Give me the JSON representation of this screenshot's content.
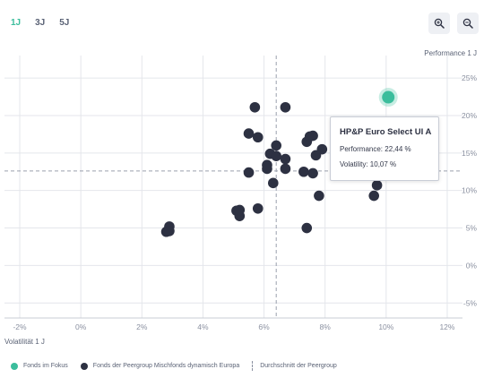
{
  "tabs": [
    {
      "label": "1J",
      "active": true
    },
    {
      "label": "3J",
      "active": false
    },
    {
      "label": "5J",
      "active": false
    }
  ],
  "zoom": {
    "in_icon": "zoom-in-icon",
    "out_icon": "zoom-out-icon"
  },
  "colors": {
    "focus": "#3bbd9c",
    "peer": "#2d3142",
    "grid": "#e4e6eb",
    "average_line": "#9aa0ad"
  },
  "chart_data": {
    "type": "scatter",
    "xlabel": "Volatilität 1 J",
    "ylabel": "Performance 1 J",
    "xlim": [
      -2.5,
      12.5
    ],
    "ylim": [
      -7,
      28
    ],
    "x_ticks": [
      "-2%",
      "0%",
      "2%",
      "4%",
      "6%",
      "8%",
      "10%",
      "12%"
    ],
    "x_tick_values": [
      -2,
      0,
      2,
      4,
      6,
      8,
      10,
      12
    ],
    "y_ticks": [
      "25%",
      "20%",
      "15%",
      "10%",
      "5%",
      "0%",
      "-5%"
    ],
    "y_tick_values": [
      25,
      20,
      15,
      10,
      5,
      0,
      -5
    ],
    "grid": true,
    "averages": {
      "x": 6.4,
      "y": 12.6
    },
    "series": [
      {
        "name": "Fonds im Fokus",
        "points": [
          {
            "x": 10.07,
            "y": 22.44
          }
        ]
      },
      {
        "name": "Fonds der Peergroup Mischfonds dynamisch Europa",
        "points": [
          {
            "x": 2.8,
            "y": 4.5
          },
          {
            "x": 2.9,
            "y": 5.2
          },
          {
            "x": 2.9,
            "y": 4.6
          },
          {
            "x": 5.1,
            "y": 7.3
          },
          {
            "x": 5.2,
            "y": 6.6
          },
          {
            "x": 5.2,
            "y": 7.4
          },
          {
            "x": 5.5,
            "y": 17.6
          },
          {
            "x": 5.5,
            "y": 12.4
          },
          {
            "x": 5.7,
            "y": 21.1
          },
          {
            "x": 5.8,
            "y": 17.1
          },
          {
            "x": 5.8,
            "y": 7.6
          },
          {
            "x": 6.1,
            "y": 13.4
          },
          {
            "x": 6.1,
            "y": 12.9
          },
          {
            "x": 6.2,
            "y": 14.9
          },
          {
            "x": 6.3,
            "y": 11.0
          },
          {
            "x": 6.4,
            "y": 16.0
          },
          {
            "x": 6.4,
            "y": 14.6
          },
          {
            "x": 6.7,
            "y": 21.1
          },
          {
            "x": 6.7,
            "y": 14.2
          },
          {
            "x": 6.7,
            "y": 12.9
          },
          {
            "x": 7.3,
            "y": 12.5
          },
          {
            "x": 7.4,
            "y": 5.0
          },
          {
            "x": 7.4,
            "y": 16.5
          },
          {
            "x": 7.5,
            "y": 17.2
          },
          {
            "x": 7.6,
            "y": 17.3
          },
          {
            "x": 7.6,
            "y": 12.3
          },
          {
            "x": 7.7,
            "y": 14.7
          },
          {
            "x": 7.8,
            "y": 9.3
          },
          {
            "x": 7.9,
            "y": 15.5
          },
          {
            "x": 9.6,
            "y": 9.3
          },
          {
            "x": 9.7,
            "y": 10.7
          }
        ]
      }
    ],
    "tooltip": {
      "title": "HP&P Euro Select UI A",
      "performance": "Performance: 22,44 %",
      "volatility": "Volatility: 10,07 %"
    }
  },
  "legend": {
    "focus": "Fonds im Fokus",
    "peer": "Fonds der Peergroup Mischfonds dynamisch Europa",
    "average": "Durchschnitt der Peergroup"
  }
}
